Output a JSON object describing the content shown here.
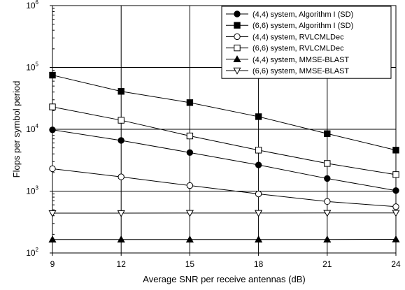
{
  "chart_data": {
    "type": "line",
    "title": "",
    "xlabel": "Average SNR per receive antennas (dB)",
    "ylabel": "Flops per symbol period",
    "x": [
      9,
      12,
      15,
      18,
      21,
      24
    ],
    "xlim": [
      9,
      24
    ],
    "ylim": [
      100,
      1000000
    ],
    "yscale": "log",
    "x_tick_labels": [
      "9",
      "12",
      "15",
      "18",
      "21",
      "24"
    ],
    "y_tick_labels": [
      {
        "base": "10",
        "exp": "2"
      },
      {
        "base": "10",
        "exp": "3"
      },
      {
        "base": "10",
        "exp": "4"
      },
      {
        "base": "10",
        "exp": "5"
      },
      {
        "base": "10",
        "exp": "6"
      }
    ],
    "grid": true,
    "legend_position": "top-right",
    "series": [
      {
        "name": "(4,4) system, Algorithm I (SD)",
        "marker": "circle-filled",
        "values": [
          9800,
          6600,
          4200,
          2650,
          1600,
          1020
        ]
      },
      {
        "name": "(6,6) system, Algorithm I (SD)",
        "marker": "square-filled",
        "values": [
          75000,
          41000,
          27000,
          16000,
          8500,
          4600
        ]
      },
      {
        "name": "(4,4) system, RVLCMLDec",
        "marker": "circle-open",
        "values": [
          2300,
          1700,
          1230,
          900,
          680,
          560
        ]
      },
      {
        "name": "(6,6) system, RVLCMLDec",
        "marker": "square-open",
        "values": [
          23000,
          14000,
          7800,
          4600,
          2800,
          1850
        ]
      },
      {
        "name": "(4,4) system, MMSE-BLAST",
        "marker": "triangle-up-filled",
        "values": [
          165,
          165,
          165,
          165,
          165,
          166
        ]
      },
      {
        "name": "(6,6) system, MMSE-BLAST",
        "marker": "triangle-down-open",
        "values": [
          440,
          440,
          442,
          442,
          443,
          444
        ]
      }
    ]
  }
}
